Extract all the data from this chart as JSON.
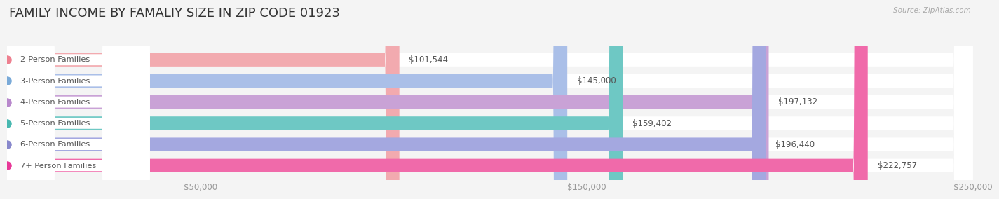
{
  "title": "FAMILY INCOME BY FAMALIY SIZE IN ZIP CODE 01923",
  "source": "Source: ZipAtlas.com",
  "categories": [
    "2-Person Families",
    "3-Person Families",
    "4-Person Families",
    "5-Person Families",
    "6-Person Families",
    "7+ Person Families"
  ],
  "values": [
    101544,
    145000,
    197132,
    159402,
    196440,
    222757
  ],
  "labels": [
    "$101,544",
    "$145,000",
    "$197,132",
    "$159,402",
    "$196,440",
    "$222,757"
  ],
  "bar_colors": [
    "#f2aaaf",
    "#aabfe8",
    "#c9a2d6",
    "#6ec8c4",
    "#a4a8e0",
    "#f06aaa"
  ],
  "dot_colors": [
    "#ee8090",
    "#7aaad8",
    "#b888cc",
    "#48b8b0",
    "#8888cc",
    "#e83898"
  ],
  "xlim": [
    0,
    250000
  ],
  "xticks": [
    0,
    50000,
    100000,
    150000,
    200000,
    250000
  ],
  "xtick_labels": [
    "",
    "$50,000",
    "",
    "$150,000",
    "",
    "$250,000"
  ],
  "background_color": "#f4f4f4",
  "title_fontsize": 13,
  "bar_height": 0.64
}
